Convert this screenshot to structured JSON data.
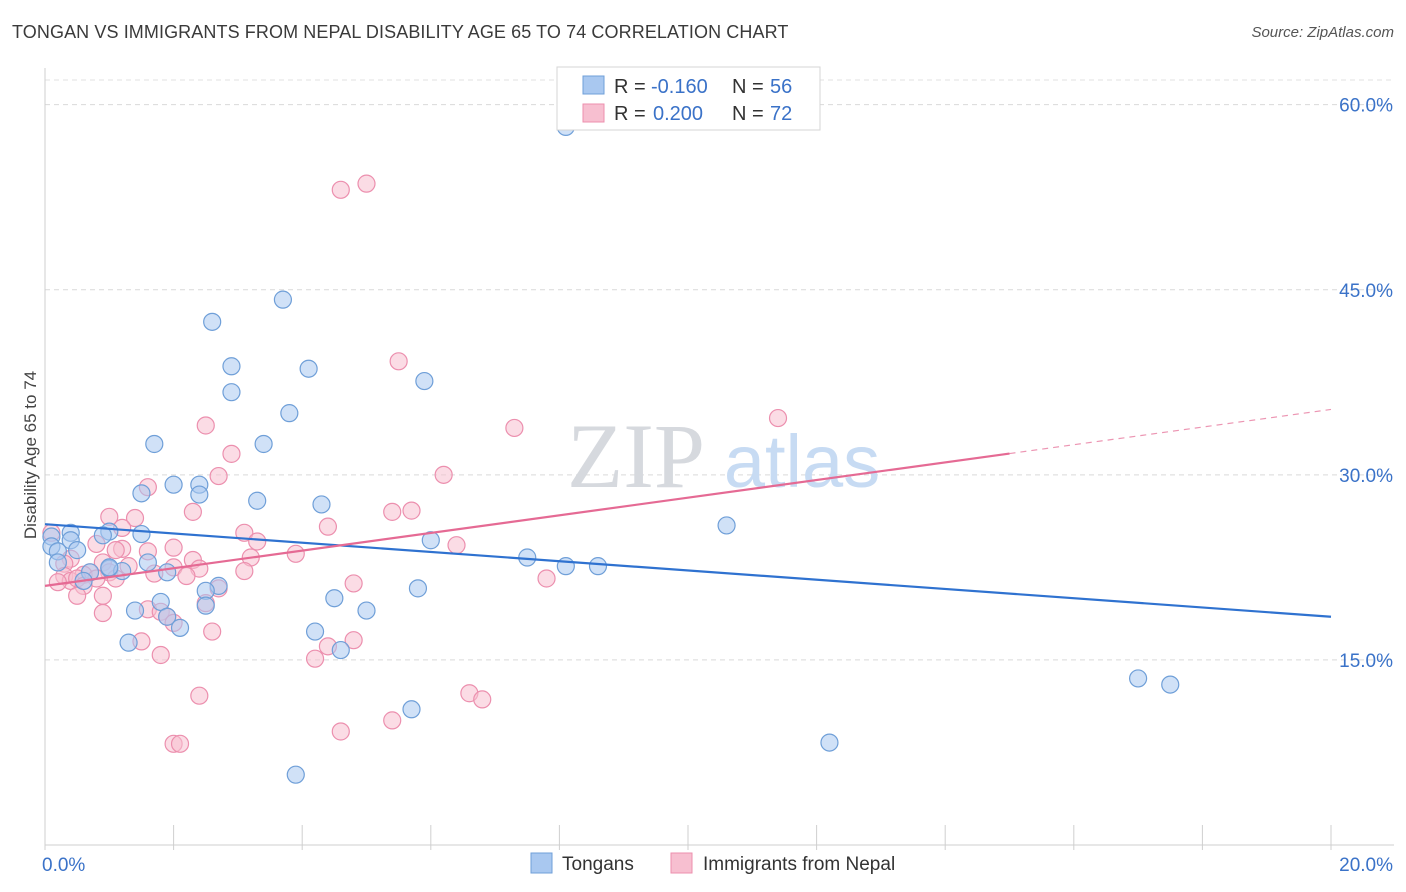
{
  "header": {
    "title": "TONGAN VS IMMIGRANTS FROM NEPAL DISABILITY AGE 65 TO 74 CORRELATION CHART",
    "source": "Source: ZipAtlas.com"
  },
  "watermark": {
    "zip": "ZIP",
    "atlas": "atlas"
  },
  "colors": {
    "blue_fill": "#a9c8f0",
    "blue_stroke": "#6f9fd8",
    "blue_line": "#2f72d0",
    "pink_fill": "#f7bfd0",
    "pink_stroke": "#ec8fae",
    "pink_line": "#e56a94",
    "tick_label": "#3a72c8"
  },
  "legend_top": {
    "rows": [
      {
        "r_label": "R =",
        "r_value": "-0.160",
        "n_label": "N =",
        "n_value": "56"
      },
      {
        "r_label": "R =",
        "r_value": "0.200",
        "n_label": "N =",
        "n_value": "72"
      }
    ]
  },
  "legend_bottom": {
    "items": [
      {
        "label": "Tongans"
      },
      {
        "label": "Immigrants from Nepal"
      }
    ]
  },
  "chart_data": {
    "type": "scatter",
    "ylabel": "Disability Age 65 to 74",
    "xlim": [
      0,
      20
    ],
    "ylim": [
      0,
      62
    ],
    "x_tick_labels": [
      {
        "value": 0,
        "label": "0.0%"
      },
      {
        "value": 20,
        "label": "20.0%"
      }
    ],
    "y_tick_labels": [
      {
        "value": 15,
        "label": "15.0%"
      },
      {
        "value": 30,
        "label": "30.0%"
      },
      {
        "value": 45,
        "label": "45.0%"
      },
      {
        "value": 60,
        "label": "60.0%"
      }
    ],
    "grid": "horizontal-dashed",
    "legend_position": "top-center",
    "series": [
      {
        "name": "Tongans",
        "color": "blue",
        "trend": {
          "x": [
            0,
            20
          ],
          "y": [
            26.0,
            18.5
          ],
          "solid_to": 20
        },
        "points": [
          [
            8.1,
            58.2
          ],
          [
            3.7,
            44.2
          ],
          [
            2.6,
            42.4
          ],
          [
            2.9,
            38.8
          ],
          [
            4.1,
            38.6
          ],
          [
            5.9,
            37.6
          ],
          [
            2.9,
            36.7
          ],
          [
            3.8,
            35.0
          ],
          [
            1.7,
            32.5
          ],
          [
            3.4,
            32.5
          ],
          [
            2.0,
            29.2
          ],
          [
            2.4,
            29.2
          ],
          [
            1.5,
            28.5
          ],
          [
            2.4,
            28.4
          ],
          [
            3.3,
            27.9
          ],
          [
            4.3,
            27.6
          ],
          [
            10.6,
            25.9
          ],
          [
            0.1,
            25.0
          ],
          [
            0.4,
            25.3
          ],
          [
            1.0,
            25.4
          ],
          [
            0.9,
            25.1
          ],
          [
            1.5,
            25.2
          ],
          [
            0.4,
            24.7
          ],
          [
            6.0,
            24.7
          ],
          [
            0.1,
            24.2
          ],
          [
            0.5,
            23.9
          ],
          [
            0.2,
            23.8
          ],
          [
            7.5,
            23.3
          ],
          [
            0.2,
            22.9
          ],
          [
            1.6,
            22.9
          ],
          [
            1.0,
            22.4
          ],
          [
            8.1,
            22.6
          ],
          [
            8.6,
            22.6
          ],
          [
            1.2,
            22.2
          ],
          [
            0.7,
            22.1
          ],
          [
            1.9,
            22.1
          ],
          [
            0.6,
            21.4
          ],
          [
            2.7,
            21.0
          ],
          [
            2.5,
            20.6
          ],
          [
            5.8,
            20.8
          ],
          [
            4.5,
            20.0
          ],
          [
            1.8,
            19.7
          ],
          [
            2.5,
            19.4
          ],
          [
            1.4,
            19.0
          ],
          [
            5.0,
            19.0
          ],
          [
            1.9,
            18.5
          ],
          [
            2.1,
            17.6
          ],
          [
            4.2,
            17.3
          ],
          [
            1.3,
            16.4
          ],
          [
            4.6,
            15.8
          ],
          [
            17.0,
            13.5
          ],
          [
            17.5,
            13.0
          ],
          [
            5.7,
            11.0
          ],
          [
            12.2,
            8.3
          ],
          [
            3.9,
            5.7
          ],
          [
            1.0,
            22.5
          ]
        ]
      },
      {
        "name": "Immigrants from Nepal",
        "color": "pink",
        "trend": {
          "x": [
            0,
            20
          ],
          "y": [
            21.0,
            35.3
          ],
          "solid_to": 15.0
        },
        "points": [
          [
            5.0,
            53.6
          ],
          [
            4.6,
            53.1
          ],
          [
            5.5,
            39.2
          ],
          [
            2.5,
            34.0
          ],
          [
            7.3,
            33.8
          ],
          [
            11.4,
            34.6
          ],
          [
            2.9,
            31.7
          ],
          [
            6.2,
            30.0
          ],
          [
            2.7,
            29.9
          ],
          [
            1.6,
            29.0
          ],
          [
            5.4,
            27.0
          ],
          [
            2.3,
            27.0
          ],
          [
            5.7,
            27.1
          ],
          [
            1.0,
            26.6
          ],
          [
            1.4,
            26.5
          ],
          [
            4.4,
            25.8
          ],
          [
            0.1,
            25.3
          ],
          [
            1.2,
            25.7
          ],
          [
            3.1,
            25.3
          ],
          [
            3.3,
            24.6
          ],
          [
            0.8,
            24.4
          ],
          [
            6.4,
            24.3
          ],
          [
            2.0,
            24.1
          ],
          [
            1.6,
            23.8
          ],
          [
            1.2,
            24.0
          ],
          [
            3.9,
            23.6
          ],
          [
            3.2,
            23.3
          ],
          [
            0.4,
            23.2
          ],
          [
            0.9,
            22.9
          ],
          [
            0.3,
            22.8
          ],
          [
            2.3,
            23.1
          ],
          [
            1.3,
            22.6
          ],
          [
            2.4,
            22.4
          ],
          [
            0.7,
            22.1
          ],
          [
            1.0,
            22.1
          ],
          [
            1.7,
            22.0
          ],
          [
            0.6,
            21.9
          ],
          [
            2.0,
            22.5
          ],
          [
            3.1,
            22.2
          ],
          [
            0.3,
            21.8
          ],
          [
            1.1,
            21.6
          ],
          [
            0.4,
            21.4
          ],
          [
            2.2,
            21.8
          ],
          [
            0.5,
            21.6
          ],
          [
            0.2,
            21.3
          ],
          [
            0.8,
            21.6
          ],
          [
            7.8,
            21.6
          ],
          [
            0.6,
            21.0
          ],
          [
            4.8,
            21.2
          ],
          [
            2.7,
            20.8
          ],
          [
            0.5,
            20.2
          ],
          [
            0.9,
            20.2
          ],
          [
            2.5,
            19.6
          ],
          [
            1.6,
            19.1
          ],
          [
            1.8,
            18.9
          ],
          [
            0.9,
            18.8
          ],
          [
            1.9,
            18.5
          ],
          [
            2.0,
            18.0
          ],
          [
            2.6,
            17.3
          ],
          [
            4.8,
            16.6
          ],
          [
            1.5,
            16.5
          ],
          [
            4.4,
            16.1
          ],
          [
            1.8,
            15.4
          ],
          [
            4.2,
            15.1
          ],
          [
            2.4,
            12.1
          ],
          [
            6.6,
            12.3
          ],
          [
            6.8,
            11.8
          ],
          [
            5.4,
            10.1
          ],
          [
            4.6,
            9.2
          ],
          [
            2.0,
            8.2
          ],
          [
            2.1,
            8.2
          ],
          [
            1.1,
            23.9
          ]
        ]
      }
    ]
  }
}
